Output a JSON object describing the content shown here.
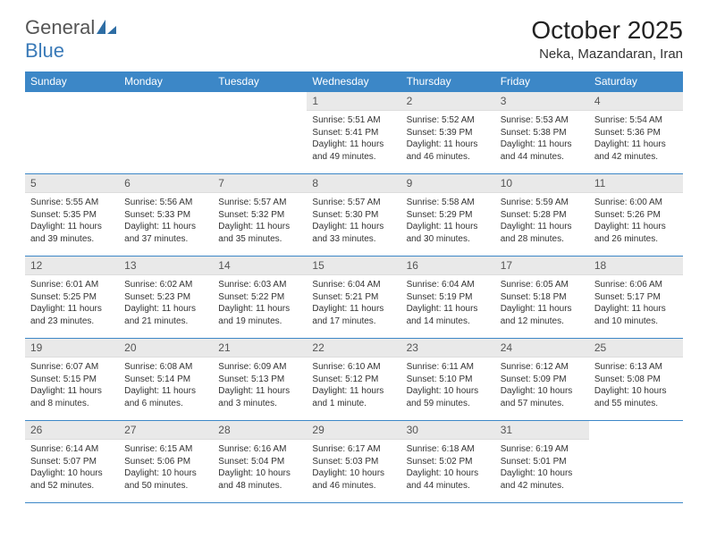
{
  "logo": {
    "part1": "General",
    "part2": "Blue"
  },
  "title": "October 2025",
  "location": "Neka, Mazandaran, Iran",
  "colors": {
    "header_bg": "#3c87c7",
    "header_text": "#ffffff",
    "daynum_bg": "#e9e9e9",
    "border": "#3c87c7",
    "text": "#333333",
    "background": "#ffffff"
  },
  "daynames": [
    "Sunday",
    "Monday",
    "Tuesday",
    "Wednesday",
    "Thursday",
    "Friday",
    "Saturday"
  ],
  "weeks": [
    [
      {
        "empty": true
      },
      {
        "empty": true
      },
      {
        "empty": true
      },
      {
        "num": "1",
        "sunrise": "5:51 AM",
        "sunset": "5:41 PM",
        "daylight": "11 hours and 49 minutes."
      },
      {
        "num": "2",
        "sunrise": "5:52 AM",
        "sunset": "5:39 PM",
        "daylight": "11 hours and 46 minutes."
      },
      {
        "num": "3",
        "sunrise": "5:53 AM",
        "sunset": "5:38 PM",
        "daylight": "11 hours and 44 minutes."
      },
      {
        "num": "4",
        "sunrise": "5:54 AM",
        "sunset": "5:36 PM",
        "daylight": "11 hours and 42 minutes."
      }
    ],
    [
      {
        "num": "5",
        "sunrise": "5:55 AM",
        "sunset": "5:35 PM",
        "daylight": "11 hours and 39 minutes."
      },
      {
        "num": "6",
        "sunrise": "5:56 AM",
        "sunset": "5:33 PM",
        "daylight": "11 hours and 37 minutes."
      },
      {
        "num": "7",
        "sunrise": "5:57 AM",
        "sunset": "5:32 PM",
        "daylight": "11 hours and 35 minutes."
      },
      {
        "num": "8",
        "sunrise": "5:57 AM",
        "sunset": "5:30 PM",
        "daylight": "11 hours and 33 minutes."
      },
      {
        "num": "9",
        "sunrise": "5:58 AM",
        "sunset": "5:29 PM",
        "daylight": "11 hours and 30 minutes."
      },
      {
        "num": "10",
        "sunrise": "5:59 AM",
        "sunset": "5:28 PM",
        "daylight": "11 hours and 28 minutes."
      },
      {
        "num": "11",
        "sunrise": "6:00 AM",
        "sunset": "5:26 PM",
        "daylight": "11 hours and 26 minutes."
      }
    ],
    [
      {
        "num": "12",
        "sunrise": "6:01 AM",
        "sunset": "5:25 PM",
        "daylight": "11 hours and 23 minutes."
      },
      {
        "num": "13",
        "sunrise": "6:02 AM",
        "sunset": "5:23 PM",
        "daylight": "11 hours and 21 minutes."
      },
      {
        "num": "14",
        "sunrise": "6:03 AM",
        "sunset": "5:22 PM",
        "daylight": "11 hours and 19 minutes."
      },
      {
        "num": "15",
        "sunrise": "6:04 AM",
        "sunset": "5:21 PM",
        "daylight": "11 hours and 17 minutes."
      },
      {
        "num": "16",
        "sunrise": "6:04 AM",
        "sunset": "5:19 PM",
        "daylight": "11 hours and 14 minutes."
      },
      {
        "num": "17",
        "sunrise": "6:05 AM",
        "sunset": "5:18 PM",
        "daylight": "11 hours and 12 minutes."
      },
      {
        "num": "18",
        "sunrise": "6:06 AM",
        "sunset": "5:17 PM",
        "daylight": "11 hours and 10 minutes."
      }
    ],
    [
      {
        "num": "19",
        "sunrise": "6:07 AM",
        "sunset": "5:15 PM",
        "daylight": "11 hours and 8 minutes."
      },
      {
        "num": "20",
        "sunrise": "6:08 AM",
        "sunset": "5:14 PM",
        "daylight": "11 hours and 6 minutes."
      },
      {
        "num": "21",
        "sunrise": "6:09 AM",
        "sunset": "5:13 PM",
        "daylight": "11 hours and 3 minutes."
      },
      {
        "num": "22",
        "sunrise": "6:10 AM",
        "sunset": "5:12 PM",
        "daylight": "11 hours and 1 minute."
      },
      {
        "num": "23",
        "sunrise": "6:11 AM",
        "sunset": "5:10 PM",
        "daylight": "10 hours and 59 minutes."
      },
      {
        "num": "24",
        "sunrise": "6:12 AM",
        "sunset": "5:09 PM",
        "daylight": "10 hours and 57 minutes."
      },
      {
        "num": "25",
        "sunrise": "6:13 AM",
        "sunset": "5:08 PM",
        "daylight": "10 hours and 55 minutes."
      }
    ],
    [
      {
        "num": "26",
        "sunrise": "6:14 AM",
        "sunset": "5:07 PM",
        "daylight": "10 hours and 52 minutes."
      },
      {
        "num": "27",
        "sunrise": "6:15 AM",
        "sunset": "5:06 PM",
        "daylight": "10 hours and 50 minutes."
      },
      {
        "num": "28",
        "sunrise": "6:16 AM",
        "sunset": "5:04 PM",
        "daylight": "10 hours and 48 minutes."
      },
      {
        "num": "29",
        "sunrise": "6:17 AM",
        "sunset": "5:03 PM",
        "daylight": "10 hours and 46 minutes."
      },
      {
        "num": "30",
        "sunrise": "6:18 AM",
        "sunset": "5:02 PM",
        "daylight": "10 hours and 44 minutes."
      },
      {
        "num": "31",
        "sunrise": "6:19 AM",
        "sunset": "5:01 PM",
        "daylight": "10 hours and 42 minutes."
      },
      {
        "empty": true
      }
    ]
  ],
  "labels": {
    "sunrise": "Sunrise:",
    "sunset": "Sunset:",
    "daylight": "Daylight:"
  }
}
